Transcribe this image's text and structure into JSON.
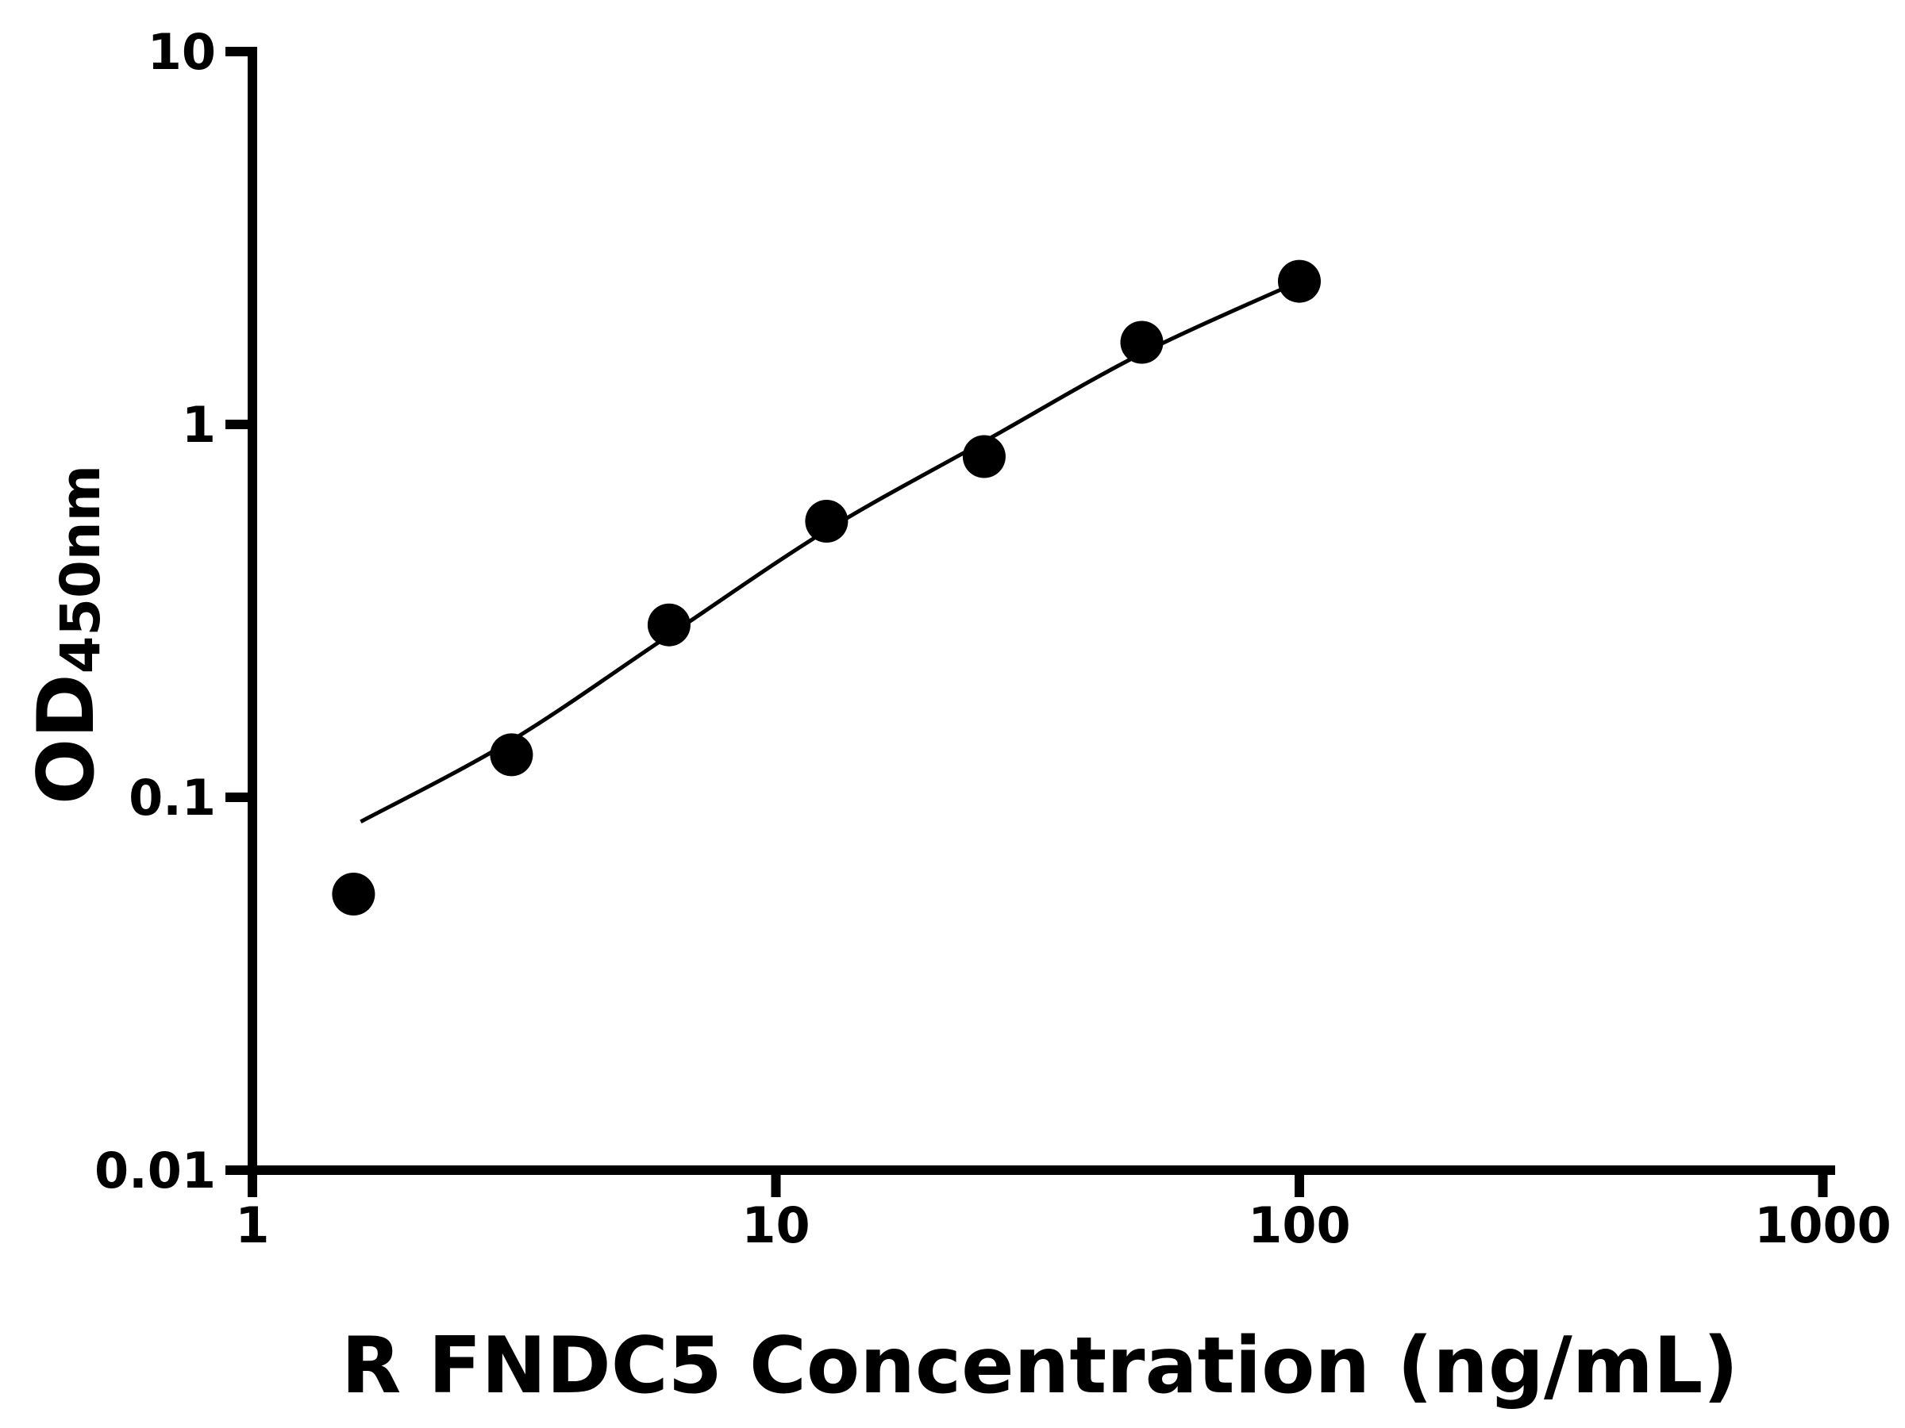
{
  "chart_data": {
    "type": "scatter",
    "title": "",
    "xlabel": "R FNDC5 Concentration (ng/mL)",
    "ylabel_main": "OD",
    "ylabel_sub": "450nm",
    "x_scale": "log",
    "y_scale": "log",
    "xlim": [
      1,
      1000
    ],
    "ylim": [
      0.01,
      10
    ],
    "grid": false,
    "legend": false,
    "x_ticks": [
      {
        "value": 1,
        "label": "1"
      },
      {
        "value": 10,
        "label": "10"
      },
      {
        "value": 100,
        "label": "100"
      },
      {
        "value": 1000,
        "label": "1000"
      }
    ],
    "y_ticks": [
      {
        "value": 0.01,
        "label": "0.01"
      },
      {
        "value": 0.1,
        "label": "0.1"
      },
      {
        "value": 1,
        "label": "1"
      },
      {
        "value": 10,
        "label": "10"
      }
    ],
    "series": [
      {
        "name": "standard-points",
        "marker": "circle",
        "x": [
          1.56,
          3.125,
          6.25,
          12.5,
          25,
          50,
          100
        ],
        "y": [
          0.055,
          0.13,
          0.29,
          0.55,
          0.82,
          1.66,
          2.42
        ]
      }
    ],
    "fit_curve": {
      "name": "four-parameter-fit",
      "x": [
        1.61,
        3.125,
        6.25,
        12.5,
        25,
        50,
        100
      ],
      "y": [
        0.086,
        0.142,
        0.272,
        0.52,
        0.9,
        1.55,
        2.42
      ]
    }
  },
  "colors": {
    "axis": "#000000",
    "marker": "#000000",
    "curve": "#000000",
    "text": "#000000",
    "background": "#ffffff"
  }
}
